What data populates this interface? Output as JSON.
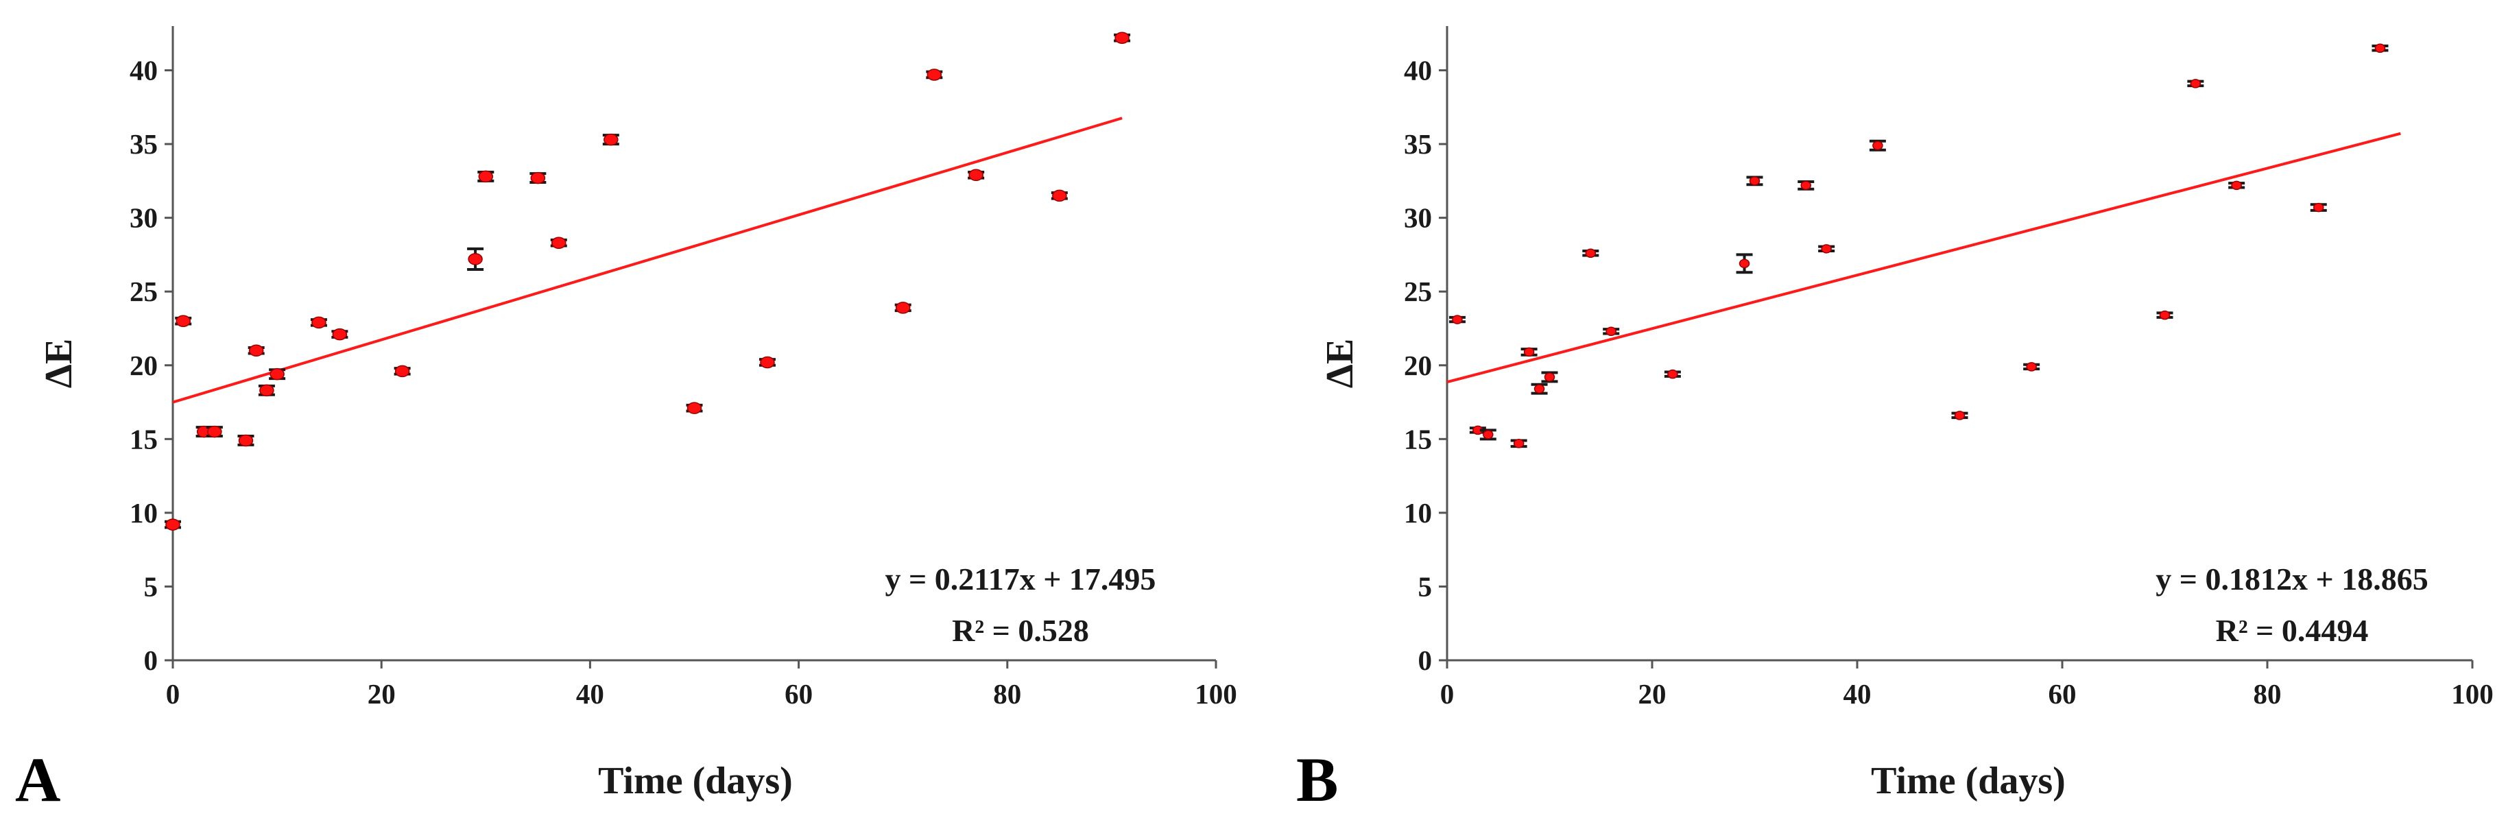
{
  "chart_data": [
    {
      "type": "scatter",
      "panel_label": "A",
      "xlabel": "Time (days)",
      "ylabel": "ΔE",
      "xlim": [
        0,
        100
      ],
      "ylim": [
        0,
        43
      ],
      "xticks": [
        0,
        20,
        40,
        60,
        80,
        100
      ],
      "yticks": [
        0,
        5,
        10,
        15,
        20,
        25,
        30,
        35,
        40
      ],
      "grid": false,
      "trendline": {
        "slope": 0.2117,
        "intercept": 17.495,
        "x_range": [
          0,
          91
        ],
        "color": "#ff1a1a"
      },
      "equation": "y = 0.2117x + 17.495",
      "r2": "R² = 0.528",
      "points": [
        {
          "x": 0,
          "y": 9.2,
          "err": 0.2
        },
        {
          "x": 1,
          "y": 23.0,
          "err": 0.2
        },
        {
          "x": 3,
          "y": 15.5,
          "err": 0.3
        },
        {
          "x": 4,
          "y": 15.5,
          "err": 0.3
        },
        {
          "x": 7,
          "y": 14.9,
          "err": 0.3
        },
        {
          "x": 8,
          "y": 21.0,
          "err": 0.2
        },
        {
          "x": 9,
          "y": 18.3,
          "err": 0.3
        },
        {
          "x": 10,
          "y": 19.4,
          "err": 0.3
        },
        {
          "x": 14,
          "y": 22.9,
          "err": 0.2
        },
        {
          "x": 16,
          "y": 22.1,
          "err": 0.2
        },
        {
          "x": 22,
          "y": 19.6,
          "err": 0.2
        },
        {
          "x": 29,
          "y": 27.2,
          "err": 0.7
        },
        {
          "x": 30,
          "y": 32.8,
          "err": 0.3
        },
        {
          "x": 35,
          "y": 32.7,
          "err": 0.3
        },
        {
          "x": 37,
          "y": 28.3,
          "err": 0.2
        },
        {
          "x": 42,
          "y": 35.3,
          "err": 0.3
        },
        {
          "x": 50,
          "y": 17.1,
          "err": 0.2
        },
        {
          "x": 57,
          "y": 20.2,
          "err": 0.2
        },
        {
          "x": 70,
          "y": 23.9,
          "err": 0.2
        },
        {
          "x": 73,
          "y": 39.7,
          "err": 0.2
        },
        {
          "x": 77,
          "y": 32.9,
          "err": 0.2
        },
        {
          "x": 85,
          "y": 31.5,
          "err": 0.2
        },
        {
          "x": 91,
          "y": 42.2,
          "err": 0.2
        }
      ]
    },
    {
      "type": "scatter",
      "panel_label": "B",
      "xlabel": "Time (days)",
      "ylabel": "ΔE",
      "xlim": [
        0,
        100
      ],
      "ylim": [
        0,
        43
      ],
      "xticks": [
        0,
        20,
        40,
        60,
        80,
        100
      ],
      "yticks": [
        0,
        5,
        10,
        15,
        20,
        25,
        30,
        35,
        40
      ],
      "grid": false,
      "trendline": {
        "slope": 0.1812,
        "intercept": 18.865,
        "x_range": [
          0,
          93
        ],
        "color": "#ff1a1a"
      },
      "equation": "y = 0.1812x + 18.865",
      "r2": "R² = 0.4494",
      "points": [
        {
          "x": 1,
          "y": 23.1,
          "err": 0.15
        },
        {
          "x": 3,
          "y": 15.6,
          "err": 0.15
        },
        {
          "x": 4,
          "y": 15.3,
          "err": 0.3
        },
        {
          "x": 7,
          "y": 14.7,
          "err": 0.2
        },
        {
          "x": 8,
          "y": 20.9,
          "err": 0.2
        },
        {
          "x": 9,
          "y": 18.4,
          "err": 0.3
        },
        {
          "x": 10,
          "y": 19.2,
          "err": 0.3
        },
        {
          "x": 14,
          "y": 27.6,
          "err": 0.15
        },
        {
          "x": 16,
          "y": 22.3,
          "err": 0.15
        },
        {
          "x": 22,
          "y": 19.4,
          "err": 0.15
        },
        {
          "x": 29,
          "y": 26.9,
          "err": 0.6
        },
        {
          "x": 30,
          "y": 32.5,
          "err": 0.25
        },
        {
          "x": 35,
          "y": 32.2,
          "err": 0.25
        },
        {
          "x": 37,
          "y": 27.9,
          "err": 0.15
        },
        {
          "x": 42,
          "y": 34.9,
          "err": 0.3
        },
        {
          "x": 50,
          "y": 16.6,
          "err": 0.15
        },
        {
          "x": 57,
          "y": 19.9,
          "err": 0.15
        },
        {
          "x": 70,
          "y": 23.4,
          "err": 0.15
        },
        {
          "x": 73,
          "y": 39.1,
          "err": 0.15
        },
        {
          "x": 77,
          "y": 32.2,
          "err": 0.15
        },
        {
          "x": 85,
          "y": 30.7,
          "err": 0.2
        },
        {
          "x": 91,
          "y": 41.5,
          "err": 0.15
        }
      ]
    }
  ]
}
